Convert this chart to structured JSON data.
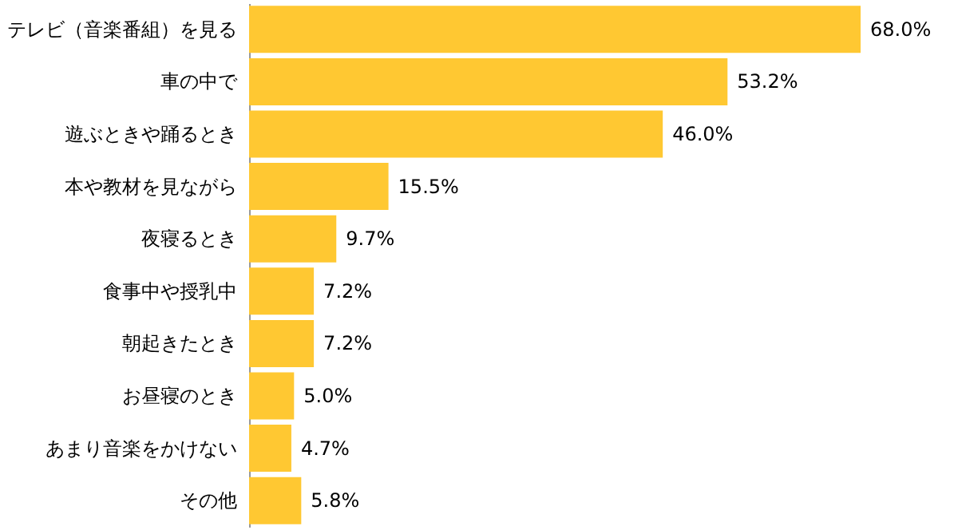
{
  "chart_data": {
    "type": "bar",
    "orientation": "horizontal",
    "categories": [
      "テレビ（音楽番組）を見る",
      "車の中で",
      "遊ぶときや踊るとき",
      "本や教材を見ながら",
      "夜寝るとき",
      "食事中や授乳中",
      "朝起きたとき",
      "お昼寝のとき",
      "あまり音楽をかけない",
      "その他"
    ],
    "values": [
      68.0,
      53.2,
      46.0,
      15.5,
      9.7,
      7.2,
      7.2,
      5.0,
      4.7,
      5.8
    ],
    "value_labels": [
      "68.0%",
      "53.2%",
      "46.0%",
      "15.5%",
      "9.7%",
      "7.2%",
      "7.2%",
      "5.0%",
      "4.7%",
      "5.8%"
    ],
    "color": "#ffc832"
  }
}
